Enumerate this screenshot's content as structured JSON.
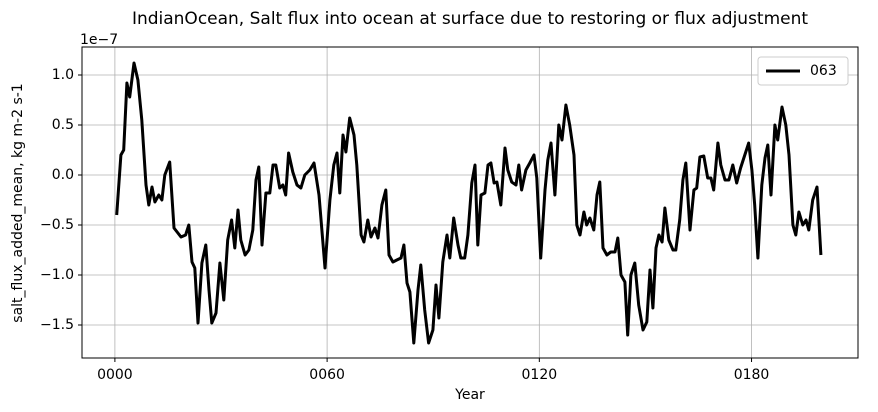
{
  "chart_data": {
    "type": "line",
    "title": "IndianOcean, Salt flux into ocean at surface due to restoring or flux adjustment",
    "x_label": "Year",
    "y_label": "salt_flux_added_mean, kg m-2 s-1",
    "y_offset_label": "1e−7",
    "x": [
      0.5,
      1.7,
      2.5,
      3.4,
      4.2,
      5.4,
      6.5,
      7.6,
      8.8,
      9.6,
      10.5,
      11.3,
      12.4,
      13.3,
      14.1,
      15.5,
      16.7,
      18.7,
      20,
      20.9,
      21.8,
      22.6,
      23.5,
      24.6,
      25.7,
      26.6,
      27.4,
      28.6,
      29.7,
      30.8,
      31.9,
      33,
      33.9,
      34.8,
      35.6,
      36.8,
      37.9,
      39,
      39.9,
      40.7,
      41.6,
      42.7,
      43.8,
      44.7,
      45.5,
      46.6,
      47.5,
      48.3,
      49.1,
      50.3,
      51.5,
      52.6,
      53.7,
      55.1,
      56.3,
      57.7,
      59.4,
      60.8,
      61.9,
      62.8,
      63.6,
      64.5,
      65.3,
      66.4,
      67.6,
      68.4,
      69.6,
      70.4,
      71.5,
      72.4,
      73.5,
      74.4,
      75.5,
      76.6,
      77.5,
      78.6,
      79.7,
      80.9,
      81.7,
      82.6,
      83.4,
      84.5,
      85.7,
      86.5,
      87.6,
      88.7,
      89.9,
      90.8,
      91.6,
      92.7,
      93.9,
      94.7,
      95.8,
      97,
      97.8,
      98.9,
      99.8,
      100.9,
      101.8,
      102.6,
      103.5,
      104.6,
      105.5,
      106.3,
      107.2,
      108,
      109.1,
      110.3,
      111.1,
      112.2,
      113.4,
      114.2,
      115,
      116.2,
      117.3,
      118.5,
      119.3,
      120.4,
      121.6,
      122.4,
      123.3,
      124.4,
      125.5,
      126.4,
      127.5,
      128.6,
      129.8,
      130.6,
      131.5,
      132.6,
      133.4,
      134.3,
      135.4,
      136.3,
      137.1,
      138,
      139.1,
      140.2,
      141.4,
      142.2,
      143.1,
      144.2,
      145,
      145.9,
      147,
      148.1,
      149.3,
      150.4,
      151.3,
      152.1,
      153,
      153.8,
      154.7,
      155.5,
      156.6,
      157.8,
      158.6,
      159.7,
      160.6,
      161.4,
      162.6,
      163.7,
      164.5,
      165.4,
      166.5,
      167.6,
      168.5,
      169.3,
      170.5,
      171.3,
      172.5,
      173.6,
      174.7,
      175.8,
      176.9,
      178.1,
      179.2,
      180.1,
      180.9,
      181.8,
      182.9,
      183.8,
      184.6,
      185.5,
      186.6,
      187.4,
      188.6,
      189.7,
      190.6,
      191.7,
      192.5,
      193.4,
      194.5,
      195.4,
      196.2,
      197.3,
      198.5,
      199.6
    ],
    "series": [
      {
        "name": "063",
        "color": "#000000",
        "values": [
          -0.4,
          0.2,
          0.25,
          0.92,
          0.78,
          1.12,
          0.95,
          0.55,
          -0.1,
          -0.3,
          -0.12,
          -0.27,
          -0.2,
          -0.25,
          0,
          0.13,
          -0.53,
          -0.62,
          -0.6,
          -0.5,
          -0.87,
          -0.93,
          -1.48,
          -0.88,
          -0.7,
          -1.15,
          -1.48,
          -1.38,
          -0.88,
          -1.25,
          -0.65,
          -0.45,
          -0.73,
          -0.35,
          -0.65,
          -0.8,
          -0.75,
          -0.55,
          -0.05,
          0.08,
          -0.7,
          -0.18,
          -0.18,
          0.1,
          0.1,
          -0.13,
          -0.1,
          -0.2,
          0.22,
          0.03,
          -0.1,
          -0.13,
          0,
          0.05,
          0.12,
          -0.2,
          -0.93,
          -0.25,
          0.1,
          0.22,
          -0.18,
          0.4,
          0.23,
          0.57,
          0.4,
          0.1,
          -0.6,
          -0.67,
          -0.45,
          -0.62,
          -0.53,
          -0.63,
          -0.3,
          -0.15,
          -0.8,
          -0.87,
          -0.85,
          -0.83,
          -0.7,
          -1.08,
          -1.17,
          -1.68,
          -1.15,
          -0.9,
          -1.35,
          -1.68,
          -1.55,
          -1.1,
          -1.43,
          -0.87,
          -0.6,
          -0.83,
          -0.43,
          -0.7,
          -0.83,
          -0.83,
          -0.6,
          -0.08,
          0.1,
          -0.7,
          -0.2,
          -0.18,
          0.1,
          0.12,
          -0.08,
          -0.07,
          -0.3,
          0.27,
          0.05,
          -0.07,
          -0.1,
          0.1,
          -0.15,
          0.05,
          0.12,
          0.2,
          -0.03,
          -0.83,
          -0.15,
          0.15,
          0.32,
          -0.2,
          0.5,
          0.35,
          0.7,
          0.5,
          0.2,
          -0.5,
          -0.6,
          -0.37,
          -0.5,
          -0.43,
          -0.55,
          -0.2,
          -0.07,
          -0.73,
          -0.8,
          -0.77,
          -0.77,
          -0.63,
          -1,
          -1.07,
          -1.6,
          -1,
          -0.88,
          -1.3,
          -1.55,
          -1.47,
          -0.95,
          -1.33,
          -0.73,
          -0.6,
          -0.67,
          -0.33,
          -0.65,
          -0.75,
          -0.75,
          -0.45,
          -0.05,
          0.12,
          -0.55,
          -0.15,
          -0.13,
          0.18,
          0.19,
          -0.03,
          -0.03,
          -0.15,
          0.32,
          0.1,
          -0.05,
          -0.05,
          0.1,
          -0.08,
          0.07,
          0.2,
          0.32,
          0.05,
          -0.3,
          -0.83,
          -0.1,
          0.17,
          0.3,
          -0.2,
          0.5,
          0.35,
          0.68,
          0.5,
          0.2,
          -0.5,
          -0.6,
          -0.37,
          -0.5,
          -0.45,
          -0.55,
          -0.25,
          -0.12,
          -0.8
        ]
      }
    ],
    "xlim": [
      -9.3,
      210.1
    ],
    "ylim": [
      -1.83,
      1.28
    ],
    "xticks": [
      {
        "value": 0,
        "label": "0000"
      },
      {
        "value": 60,
        "label": "0060"
      },
      {
        "value": 120,
        "label": "0120"
      },
      {
        "value": 180,
        "label": "0180"
      }
    ],
    "yticks": [
      {
        "value": -1.5,
        "label": "−1.5"
      },
      {
        "value": -1,
        "label": "−1.0"
      },
      {
        "value": -0.5,
        "label": "−0.5"
      },
      {
        "value": 0,
        "label": "0.0"
      },
      {
        "value": 0.5,
        "label": "0.5"
      },
      {
        "value": 1,
        "label": "1.0"
      }
    ],
    "grid": true,
    "legend": "upper right"
  }
}
